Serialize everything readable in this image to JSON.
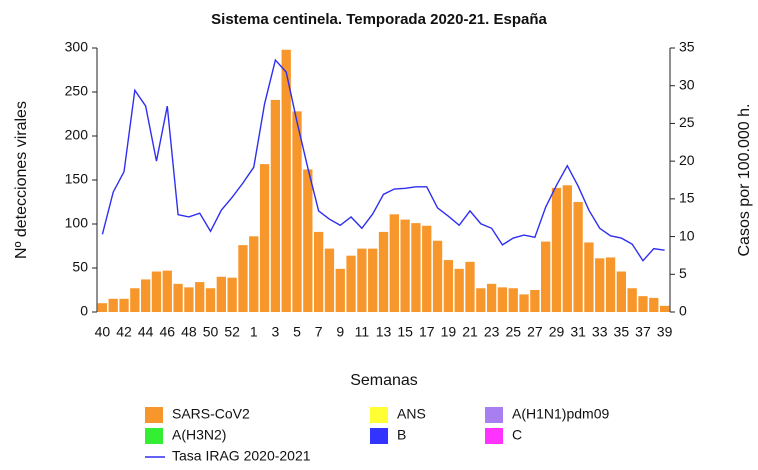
{
  "chart_data": {
    "type": "bar",
    "title": "Sistema centinela. Temporada 2020-21. España",
    "xlabel": "Semanas",
    "ylabel": "Nº detecciones virales",
    "y2label": "Casos por 100.000 h.",
    "categories": [
      "40",
      null,
      "42",
      null,
      "44",
      null,
      "46",
      null,
      "48",
      null,
      "50",
      null,
      "52",
      null,
      "1",
      null,
      "3",
      null,
      "5",
      null,
      "7",
      null,
      "9",
      null,
      "11",
      null,
      "13",
      null,
      "15",
      null,
      "17",
      null,
      "19",
      null,
      "21",
      null,
      "23",
      null,
      "25",
      null,
      "27",
      null,
      "29",
      null,
      "31",
      null,
      "33",
      null,
      "35",
      null,
      "37",
      null,
      "39"
    ],
    "ylim": [
      0,
      300
    ],
    "yticks": [
      0,
      50,
      100,
      150,
      200,
      250,
      300
    ],
    "y2lim": [
      0,
      35
    ],
    "y2ticks": [
      0,
      5,
      10,
      15,
      20,
      25,
      30,
      35
    ],
    "series": [
      {
        "name": "SARS-CoV2",
        "color": "#f7962b",
        "values": [
          10,
          15,
          15,
          27,
          37,
          46,
          47,
          32,
          28,
          34,
          27,
          40,
          39,
          76,
          86,
          168,
          241,
          298,
          228,
          162,
          91,
          72,
          49,
          64,
          72,
          72,
          91,
          111,
          105,
          101,
          98,
          81,
          59,
          49,
          57,
          27,
          32,
          28,
          27,
          20,
          25,
          80,
          141,
          144,
          125,
          79,
          61,
          62,
          46,
          27,
          18,
          16,
          7
        ]
      },
      {
        "name": "ANS",
        "color": "#ffff33",
        "values": [
          0,
          0,
          0,
          0,
          0,
          0,
          0,
          0,
          0,
          0,
          0,
          0,
          0,
          0,
          0,
          0,
          0,
          0,
          0,
          0,
          0,
          0,
          0,
          0,
          0,
          0,
          0,
          0,
          0,
          0,
          0,
          0,
          0,
          0,
          0,
          0,
          0,
          0,
          0,
          0,
          0,
          0,
          0,
          0,
          0,
          0,
          0,
          0,
          0,
          0,
          0,
          0,
          0
        ]
      },
      {
        "name": "A(H1N1)pdm09",
        "color": "#a77ff0",
        "values": [
          0,
          0,
          0,
          0,
          0,
          0,
          0,
          0,
          0,
          0,
          0,
          0,
          0,
          0,
          0,
          0,
          0,
          0,
          0,
          0,
          0,
          0,
          0,
          0,
          0,
          0,
          0,
          0,
          0,
          0,
          0,
          0,
          0,
          0,
          0,
          0,
          0,
          0,
          0,
          0,
          0,
          0,
          0,
          0,
          0,
          0,
          0,
          0,
          0,
          0,
          0,
          0,
          0
        ]
      },
      {
        "name": "A(H3N2)",
        "color": "#33ee33",
        "values": [
          0,
          0,
          0,
          0,
          0,
          0,
          0,
          0,
          0,
          0,
          0,
          0,
          0,
          0,
          0,
          0,
          0,
          0,
          0,
          0,
          0,
          0,
          0,
          0,
          0,
          0,
          0,
          0,
          0,
          0,
          0,
          0,
          0,
          0,
          0,
          0,
          0,
          0,
          0,
          0,
          0,
          0,
          0,
          0,
          0,
          0,
          0,
          0,
          0,
          0,
          0,
          0,
          0
        ]
      },
      {
        "name": "B",
        "color": "#3333ff",
        "values": [
          0,
          0,
          0,
          0,
          0,
          0,
          0,
          0,
          0,
          0,
          0,
          0,
          0,
          0,
          0,
          0,
          0,
          0,
          0,
          0,
          0,
          0,
          0,
          0,
          0,
          0,
          0,
          0,
          0,
          0,
          0,
          0,
          0,
          0,
          0,
          0,
          0,
          0,
          0,
          0,
          0,
          0,
          0,
          0,
          0,
          0,
          0,
          0,
          0,
          0,
          0,
          0,
          0
        ]
      },
      {
        "name": "C",
        "color": "#ff33ff",
        "values": [
          0,
          0,
          0,
          0,
          0,
          0,
          0,
          0,
          0,
          0,
          0,
          0,
          0,
          0,
          0,
          0,
          0,
          0,
          0,
          0,
          0,
          0,
          0,
          0,
          0,
          0,
          0,
          0,
          0,
          0,
          0,
          0,
          0,
          0,
          0,
          0,
          0,
          0,
          0,
          0,
          0,
          0,
          0,
          0,
          0,
          0,
          0,
          0,
          0,
          0,
          0,
          0,
          0
        ]
      },
      {
        "name": "Tasa IRAG 2020-2021",
        "color": "#2f2ff0",
        "type": "line",
        "axis": "y2",
        "values": [
          10.3,
          15.9,
          18.6,
          29.4,
          27.3,
          20,
          27.3,
          12.9,
          12.6,
          13.1,
          10.7,
          13.5,
          15.2,
          17.1,
          19.2,
          27.6,
          33.4,
          31.8,
          25.2,
          19.1,
          13.4,
          12.3,
          11.5,
          12.6,
          11.1,
          13,
          15.6,
          16.3,
          16.4,
          16.6,
          16.6,
          13.8,
          12.7,
          11.5,
          13.4,
          11.7,
          11.1,
          8.9,
          9.8,
          10.2,
          9.9,
          13.9,
          16.8,
          19.4,
          16.7,
          13.5,
          11.1,
          10.1,
          9.8,
          9,
          6.8,
          8.4,
          8.2
        ]
      }
    ]
  }
}
